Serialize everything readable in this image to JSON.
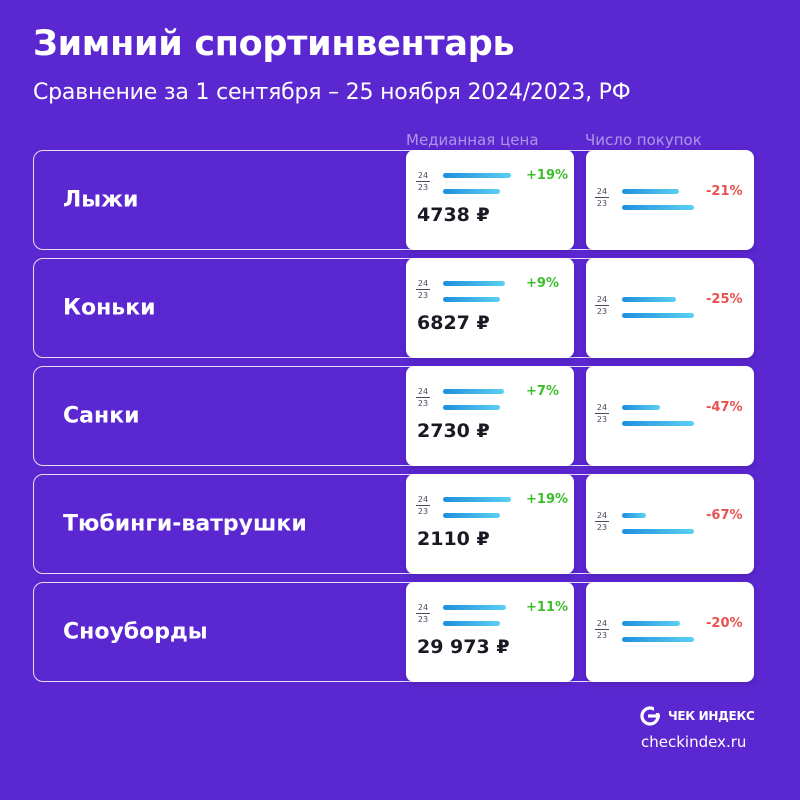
{
  "title": "Зимний спортинвентарь",
  "subtitle": "Сравнение за 1 сентября – 25 ноября 2024/2023, РФ",
  "columns": {
    "price": "Медианная цена",
    "count": "Число покупок"
  },
  "year_labels": {
    "current": "24",
    "previous": "23"
  },
  "colors": {
    "background": "#5b27d1",
    "increase": "#3cbf2a",
    "decrease": "#e8514f",
    "bar_start": "#1e8fe0",
    "bar_end": "#5ad0f0"
  },
  "chart_data": {
    "type": "bar",
    "categories": [
      "Лыжи",
      "Коньки",
      "Санки",
      "Тюбинги-ватрушки",
      "Сноуборды"
    ],
    "series": [
      {
        "name": "Медианная цена",
        "change_labels": [
          "+19%",
          "+9%",
          "+7%",
          "+19%",
          "+11%"
        ],
        "change_pct": [
          19,
          9,
          7,
          19,
          11
        ],
        "value_labels": [
          "4738 ₽",
          "6827 ₽",
          "2730 ₽",
          "2110 ₽",
          "29 973 ₽"
        ]
      },
      {
        "name": "Число покупок",
        "change_labels": [
          "-21%",
          "-25%",
          "-47%",
          "-67%",
          "-20%"
        ],
        "change_pct": [
          -21,
          -25,
          -47,
          -67,
          -20
        ]
      }
    ]
  },
  "brand": {
    "logo_text": "ЧЕК ИНДЕКС",
    "logo_icon": "checkindex-logo-icon",
    "site": "checkindex.ru"
  }
}
